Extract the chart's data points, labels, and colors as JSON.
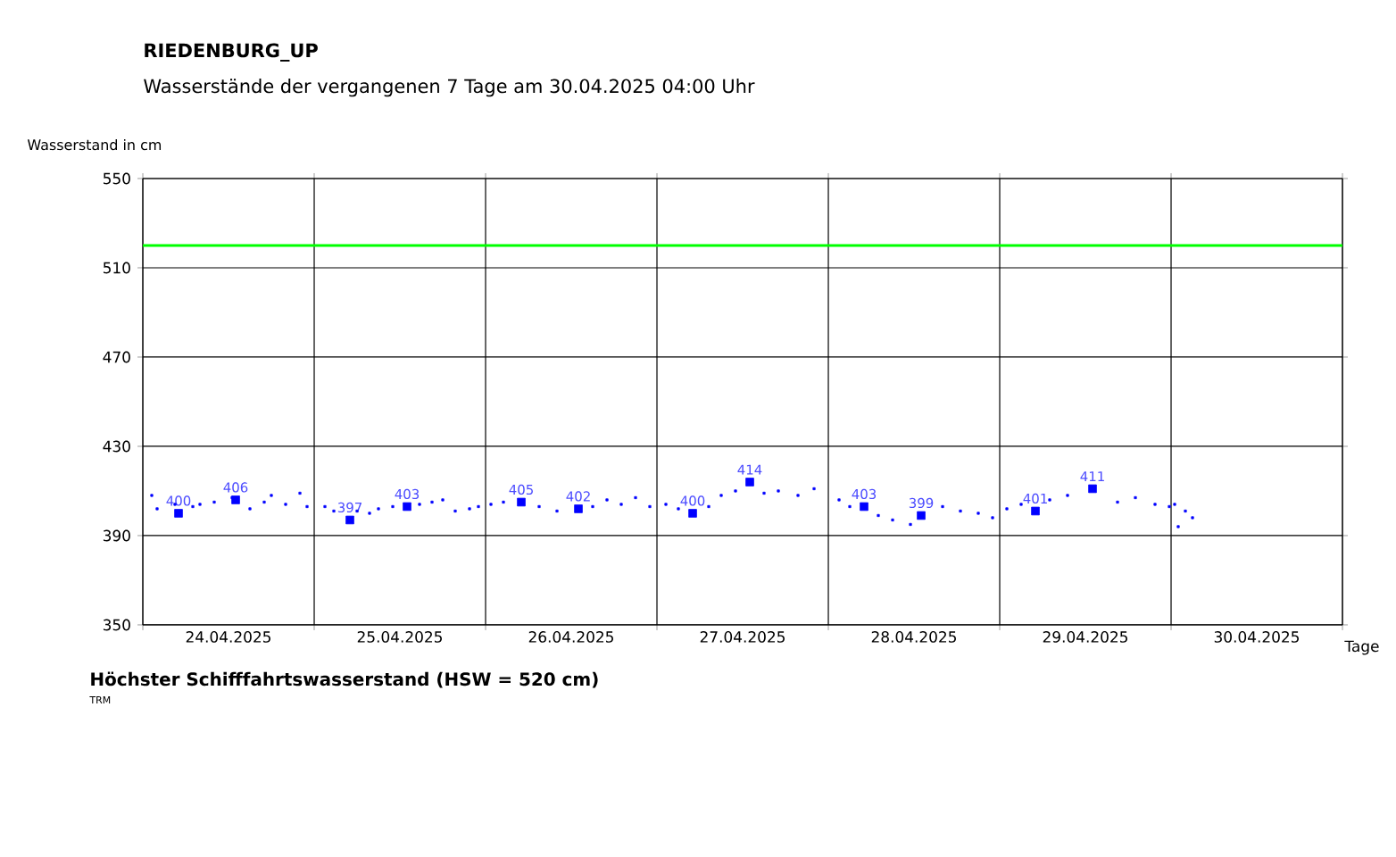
{
  "chart_data": {
    "type": "scatter",
    "title": "RIEDENBURG_UP",
    "subtitle": "Wasserstände der vergangenen 7 Tage am 30.04.2025 04:00 Uhr",
    "ylabel": "Wasserstand in cm",
    "xlabel": "Tage",
    "annotations": [
      "Höchster Schifffahrtswasserstand (HSW = 520 cm)",
      "TRM"
    ],
    "xlim": [
      "2025-04-24T00:00",
      "2025-05-01T00:00"
    ],
    "ylim": [
      350,
      550
    ],
    "yticks": [
      350,
      390,
      430,
      470,
      510,
      550
    ],
    "xticks": [
      {
        "value": "2025-04-24T00:00",
        "label": null
      },
      {
        "value": "2025-04-25T00:00",
        "label": null
      },
      {
        "value": "2025-04-26T00:00",
        "label": null
      },
      {
        "value": "2025-04-27T00:00",
        "label": null
      },
      {
        "value": "2025-04-28T00:00",
        "label": null
      },
      {
        "value": "2025-04-29T00:00",
        "label": null
      },
      {
        "value": "2025-04-30T00:00",
        "label": null
      },
      {
        "value": "2025-05-01T00:00",
        "label": null
      },
      {
        "value": "2025-04-24T12:00",
        "label": "24.04.2025"
      },
      {
        "value": "2025-04-25T12:00",
        "label": "25.04.2025"
      },
      {
        "value": "2025-04-26T12:00",
        "label": "26.04.2025"
      },
      {
        "value": "2025-04-27T12:00",
        "label": "27.04.2025"
      },
      {
        "value": "2025-04-28T12:00",
        "label": "28.04.2025"
      },
      {
        "value": "2025-04-29T12:00",
        "label": "29.04.2025"
      },
      {
        "value": "2025-04-30T12:00",
        "label": "30.04.2025"
      }
    ],
    "grid": true,
    "marker": "square",
    "ref_lines": [
      {
        "axis": "y",
        "value": 520,
        "color": "#00ff00"
      }
    ],
    "series": [
      {
        "color": "#0000ff",
        "x": [
          "2025-04-24T01:15",
          "2025-04-24T02:00",
          "2025-04-24T04:30",
          "2025-04-24T07:00",
          "2025-04-24T08:00",
          "2025-04-24T10:00",
          "2025-04-24T12:30",
          "2025-04-24T15:00",
          "2025-04-24T17:00",
          "2025-04-24T18:00",
          "2025-04-24T20:00",
          "2025-04-24T22:00",
          "2025-04-24T23:00",
          "2025-04-25T01:30",
          "2025-04-25T02:45",
          "2025-04-25T06:00",
          "2025-04-25T07:45",
          "2025-04-25T09:00",
          "2025-04-25T11:00",
          "2025-04-25T14:45",
          "2025-04-25T16:30",
          "2025-04-25T18:00",
          "2025-04-25T19:45",
          "2025-04-25T21:45",
          "2025-04-25T23:00",
          "2025-04-26T00:45",
          "2025-04-26T02:30",
          "2025-04-26T07:30",
          "2025-04-26T10:00",
          "2025-04-26T15:00",
          "2025-04-26T17:00",
          "2025-04-26T19:00",
          "2025-04-26T21:00",
          "2025-04-26T23:00",
          "2025-04-27T01:15",
          "2025-04-27T03:00",
          "2025-04-27T07:15",
          "2025-04-27T09:00",
          "2025-04-27T11:00",
          "2025-04-27T15:00",
          "2025-04-27T17:00",
          "2025-04-27T19:45",
          "2025-04-27T22:00",
          "2025-04-28T01:30",
          "2025-04-28T03:00",
          "2025-04-28T07:00",
          "2025-04-28T09:00",
          "2025-04-28T11:30",
          "2025-04-28T16:00",
          "2025-04-28T18:30",
          "2025-04-28T21:00",
          "2025-04-28T23:00",
          "2025-04-29T01:00",
          "2025-04-29T03:00",
          "2025-04-29T07:00",
          "2025-04-29T09:30",
          "2025-04-29T16:30",
          "2025-04-29T19:00",
          "2025-04-29T21:45",
          "2025-04-29T23:45",
          "2025-04-30T00:30",
          "2025-04-30T01:00",
          "2025-04-30T02:00",
          "2025-04-30T03:00"
        ],
        "values": [
          408,
          402,
          404,
          403,
          404,
          405,
          407,
          402,
          405,
          408,
          404,
          409,
          403,
          403,
          401,
          401,
          400,
          402,
          403,
          404,
          405,
          406,
          401,
          402,
          403,
          404,
          405,
          403,
          401,
          403,
          406,
          404,
          407,
          403,
          404,
          402,
          403,
          408,
          410,
          409,
          410,
          408,
          411,
          406,
          403,
          399,
          397,
          395,
          403,
          401,
          400,
          398,
          402,
          404,
          406,
          408,
          405,
          407,
          404,
          403,
          404,
          394,
          401,
          398
        ]
      },
      {
        "color": "#0000ff",
        "x": [
          "2025-04-24T05:00",
          "2025-04-24T13:00",
          "2025-04-25T05:00",
          "2025-04-25T13:00",
          "2025-04-26T05:00",
          "2025-04-26T13:00",
          "2025-04-27T05:00",
          "2025-04-27T13:00",
          "2025-04-28T05:00",
          "2025-04-28T13:00",
          "2025-04-29T05:00",
          "2025-04-29T13:00"
        ],
        "values": [
          400,
          406,
          397,
          403,
          405,
          402,
          400,
          414,
          403,
          399,
          401,
          411
        ],
        "value_labels": [
          "400",
          "406",
          "397",
          "403",
          "405",
          "402",
          "400",
          "414",
          "403",
          "399",
          "401",
          "411"
        ]
      }
    ]
  }
}
